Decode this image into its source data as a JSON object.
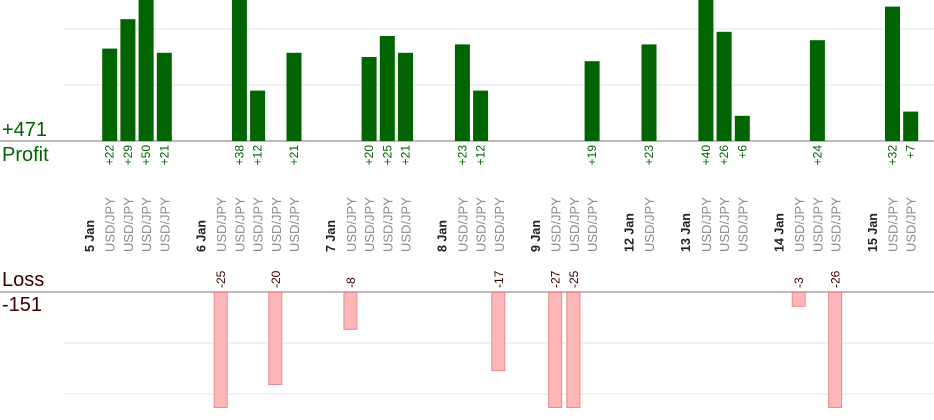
{
  "summary": {
    "profit_total": "+471",
    "profit_label": "Profit",
    "loss_label": "Loss",
    "loss_total": "-151"
  },
  "chart_data": {
    "type": "bar",
    "title": "",
    "instrument": "USD/JPY",
    "days": [
      {
        "date": "5 Jan",
        "trades": [
          22,
          29,
          50,
          21
        ]
      },
      {
        "date": "6 Jan",
        "trades": [
          -25,
          38,
          12,
          -20,
          21
        ]
      },
      {
        "date": "7 Jan",
        "trades": [
          -8,
          20,
          25,
          21
        ]
      },
      {
        "date": "8 Jan",
        "trades": [
          23,
          12,
          -17
        ]
      },
      {
        "date": "9 Jan",
        "trades": [
          -27,
          -25,
          19
        ]
      },
      {
        "date": "12 Jan",
        "trades": [
          23
        ]
      },
      {
        "date": "13 Jan",
        "trades": [
          40,
          26,
          6
        ]
      },
      {
        "date": "14 Jan",
        "trades": [
          -3,
          24,
          -26
        ]
      },
      {
        "date": "15 Jan",
        "trades": [
          32,
          7
        ]
      }
    ],
    "profit_axis": {
      "ylim": [
        0,
        30
      ],
      "grid": true
    },
    "loss_axis": {
      "ylim": [
        -25,
        0
      ],
      "grid": true
    },
    "colors": {
      "profit_bar": "#006400",
      "loss_bar": "#ffb6b9",
      "loss_bar_border": "#e88a8f",
      "date_label": "#222222",
      "instrument_label": "#8a8a8a",
      "profit_value": "#006400",
      "loss_value": "#3a0000",
      "axis_line": "#777777",
      "grid_line": "#e6e6e6"
    }
  }
}
